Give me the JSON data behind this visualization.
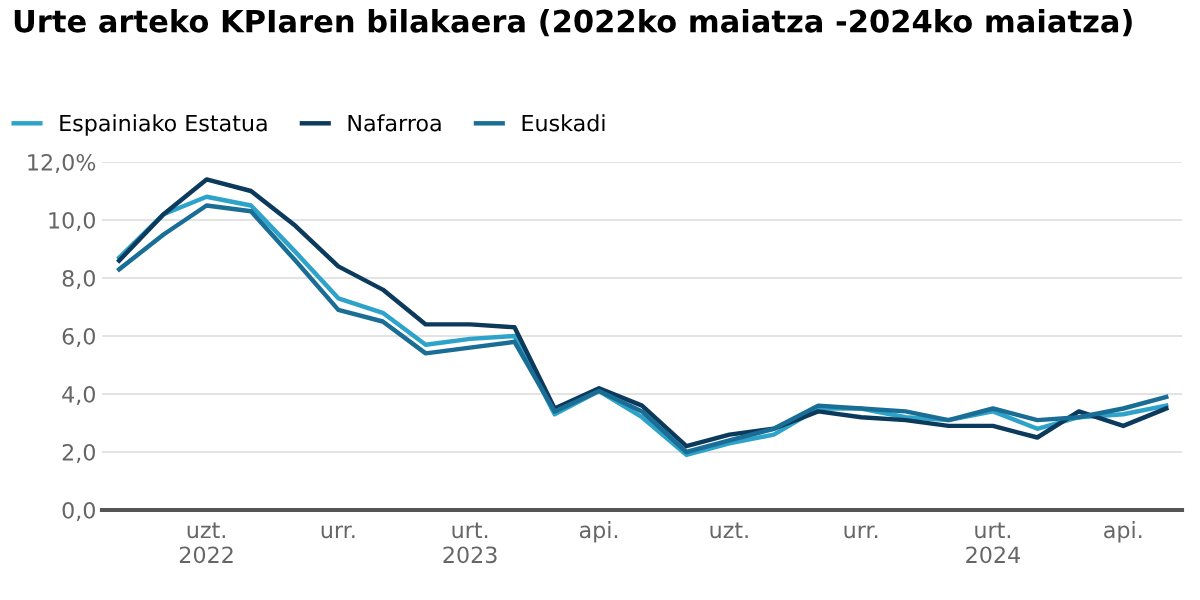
{
  "chart_data": {
    "type": "line",
    "title": "Urte arteko KPIaren bilakaera (2022ko maiatza -2024ko maiatza)",
    "x": [
      "2022-05",
      "2022-06",
      "2022-07",
      "2022-08",
      "2022-09",
      "2022-10",
      "2022-11",
      "2022-12",
      "2023-01",
      "2023-02",
      "2023-03",
      "2023-04",
      "2023-05",
      "2023-06",
      "2023-07",
      "2023-08",
      "2023-09",
      "2023-10",
      "2023-11",
      "2023-12",
      "2024-01",
      "2024-02",
      "2024-03",
      "2024-04",
      "2024-05"
    ],
    "series": [
      {
        "name": "Espainiako Estatua",
        "color": "#2ea3c9",
        "values": [
          8.7,
          10.2,
          10.8,
          10.5,
          8.9,
          7.3,
          6.8,
          5.7,
          5.9,
          6.0,
          3.3,
          4.1,
          3.2,
          1.9,
          2.3,
          2.6,
          3.5,
          3.5,
          3.2,
          3.1,
          3.4,
          2.8,
          3.2,
          3.3,
          3.6
        ]
      },
      {
        "name": "Nafarroa",
        "color": "#0b3a5c",
        "values": [
          8.6,
          10.2,
          11.4,
          11.0,
          9.8,
          8.4,
          7.6,
          6.4,
          6.4,
          6.3,
          3.5,
          4.2,
          3.6,
          2.2,
          2.6,
          2.8,
          3.4,
          3.2,
          3.1,
          2.9,
          2.9,
          2.5,
          3.4,
          2.9,
          3.5
        ]
      },
      {
        "name": "Euskadi",
        "color": "#1a6e96",
        "values": [
          8.3,
          9.5,
          10.5,
          10.3,
          8.6,
          6.9,
          6.5,
          5.4,
          5.6,
          5.8,
          3.4,
          4.1,
          3.4,
          2.0,
          2.4,
          2.8,
          3.6,
          3.5,
          3.4,
          3.1,
          3.5,
          3.1,
          3.2,
          3.5,
          3.9
        ]
      }
    ],
    "xlim": [
      "2022-04-19",
      "2024-05-12"
    ],
    "xticks": [
      {
        "value": "2022-07",
        "label": "uzt.\n2022"
      },
      {
        "value": "2022-10",
        "label": "urr."
      },
      {
        "value": "2023-01",
        "label": "urt.\n2023"
      },
      {
        "value": "2023-04",
        "label": "api."
      },
      {
        "value": "2023-07",
        "label": "uzt."
      },
      {
        "value": "2023-10",
        "label": "urr."
      },
      {
        "value": "2024-01",
        "label": "urt.\n2024"
      },
      {
        "value": "2024-04",
        "label": "api."
      }
    ],
    "ylim": [
      0,
      12
    ],
    "yticks": [
      {
        "value": 0,
        "label": "0,0"
      },
      {
        "value": 2,
        "label": "2,0"
      },
      {
        "value": 4,
        "label": "4,0"
      },
      {
        "value": 6,
        "label": "6,0"
      },
      {
        "value": 8,
        "label": "8,0"
      },
      {
        "value": 10,
        "label": "10,0"
      },
      {
        "value": 12,
        "label": "12,0%"
      }
    ],
    "grid": "y",
    "legend": "top left",
    "marker": "none",
    "line_style": "solid"
  }
}
